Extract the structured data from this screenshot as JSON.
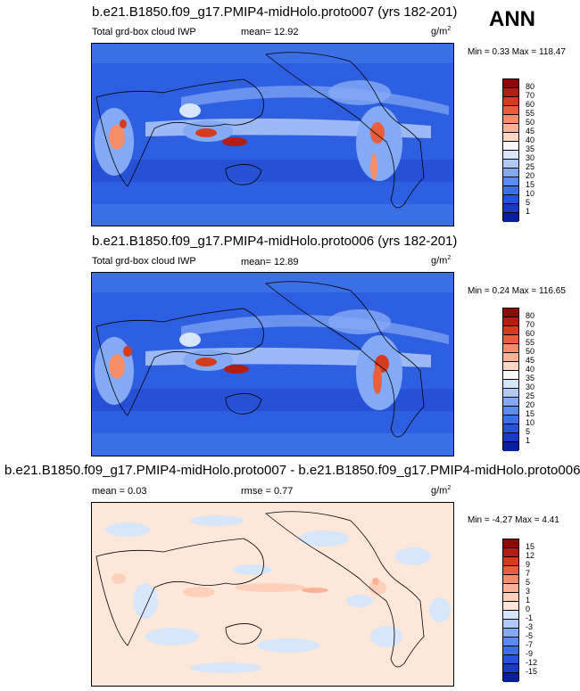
{
  "season": "ANN",
  "colors": {
    "abs_scale": [
      "#0a1f9c",
      "#1a39c4",
      "#2553d9",
      "#3a6fe6",
      "#5a8cf0",
      "#84aaf5",
      "#b0c9f8",
      "#d8e6fb",
      "#f7f7f7",
      "#fcd6c6",
      "#f9b296",
      "#f58d6b",
      "#ea5f3b",
      "#d43c1e",
      "#b21e10",
      "#8b0a05"
    ],
    "diff_scale": [
      "#0a1f9c",
      "#1a39c4",
      "#2553d9",
      "#3a6fe6",
      "#5a8cf0",
      "#84aaf5",
      "#b0c9f8",
      "#d8e6fb",
      "#fde7d8",
      "#fcd0bb",
      "#f9b296",
      "#f58d6b",
      "#ea5f3b",
      "#d43c1e",
      "#b21e10",
      "#8b0a05"
    ],
    "ocean_base": "#2e5fe0",
    "diff_base": "#fde7d8"
  },
  "panels": [
    {
      "title": "b.e21.B1850.f09_g17.PMIP4-midHolo.proto007 (yrs 182-201)",
      "field": "Total grd-box cloud IWP",
      "mean_text": "mean=  12.92",
      "unit": "g/m",
      "unit_exp": "2",
      "minmax": "Min =   0.33 Max = 118.47"
    },
    {
      "title": "b.e21.B1850.f09_g17.PMIP4-midHolo.proto006 (yrs 182-201)",
      "field": "Total grd-box cloud IWP",
      "mean_text": "mean=  12.89",
      "unit": "g/m",
      "unit_exp": "2",
      "minmax": "Min =   0.24 Max = 116.65"
    },
    {
      "title": "b.e21.B1850.f09_g17.PMIP4-midHolo.proto007 - b.e21.B1850.f09_g17.PMIP4-midHolo.proto006",
      "mean_text": "mean =   0.03",
      "rmse_text": "rmse =   0.77",
      "unit": "g/m",
      "unit_exp": "2",
      "minmax": "Min =  -4.27 Max =   4.41"
    }
  ],
  "chart_data": [
    {
      "type": "heatmap",
      "title": "b.e21.B1850.f09_g17.PMIP4-midHolo.proto007 (yrs 182-201)",
      "field": "Total grd-box cloud IWP",
      "units": "g/m2",
      "mean": 12.92,
      "min": 0.33,
      "max": 118.47,
      "levels": [
        1,
        5,
        10,
        15,
        20,
        25,
        30,
        35,
        40,
        45,
        50,
        55,
        60,
        70,
        80
      ],
      "level_labels": [
        "80",
        "70",
        "60",
        "55",
        "50",
        "45",
        "40",
        "35",
        "30",
        "25",
        "20",
        "15",
        "10",
        "5",
        "1"
      ]
    },
    {
      "type": "heatmap",
      "title": "b.e21.B1850.f09_g17.PMIP4-midHolo.proto006 (yrs 182-201)",
      "field": "Total grd-box cloud IWP",
      "units": "g/m2",
      "mean": 12.89,
      "min": 0.24,
      "max": 116.65,
      "levels": [
        1,
        5,
        10,
        15,
        20,
        25,
        30,
        35,
        40,
        45,
        50,
        55,
        60,
        70,
        80
      ],
      "level_labels": [
        "80",
        "70",
        "60",
        "55",
        "50",
        "45",
        "40",
        "35",
        "30",
        "25",
        "20",
        "15",
        "10",
        "5",
        "1"
      ]
    },
    {
      "type": "heatmap",
      "title": "b.e21.B1850.f09_g17.PMIP4-midHolo.proto007 - b.e21.B1850.f09_g17.PMIP4-midHolo.proto006",
      "units": "g/m2",
      "mean": 0.03,
      "rmse": 0.77,
      "min": -4.27,
      "max": 4.41,
      "levels": [
        -15,
        -12,
        -9,
        -7,
        -5,
        -3,
        -1,
        0,
        1,
        3,
        5,
        7,
        9,
        12,
        15
      ],
      "level_labels": [
        "15",
        "12",
        "9",
        "7",
        "5",
        "3",
        "1",
        "0",
        "-1",
        "-3",
        "-5",
        "-7",
        "-9",
        "-12",
        "-15"
      ]
    }
  ]
}
